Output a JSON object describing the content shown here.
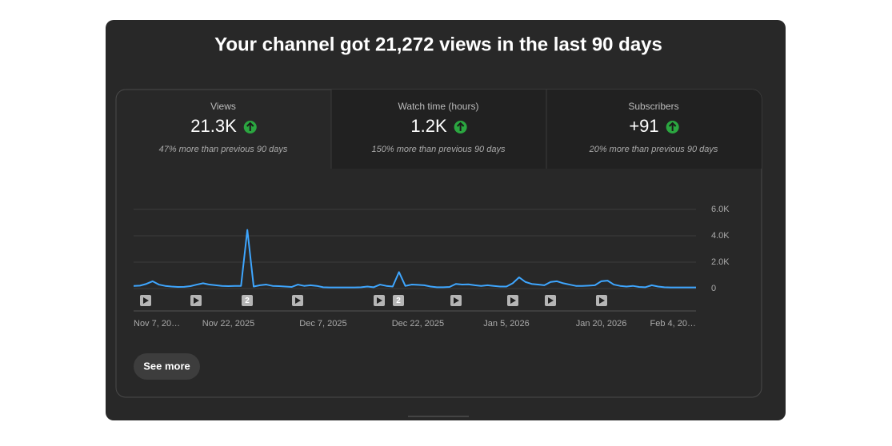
{
  "header": {
    "title": "Your channel got 21,272 views in the last 90 days"
  },
  "metrics": [
    {
      "label": "Views",
      "value": "21.3K",
      "note": "47% more than previous 90 days"
    },
    {
      "label": "Watch time (hours)",
      "value": "1.2K",
      "note": "150% more than previous 90 days"
    },
    {
      "label": "Subscribers",
      "value": "+91",
      "note": "20% more than previous 90 days"
    }
  ],
  "chart_data": {
    "type": "line",
    "color": "#3ea6ff",
    "grid": true,
    "categories": [
      "Nov 7, 20…",
      null,
      null,
      null,
      null,
      null,
      null,
      null,
      null,
      null,
      null,
      null,
      null,
      null,
      null,
      "Nov 22, 2025",
      null,
      null,
      null,
      null,
      null,
      null,
      null,
      null,
      null,
      null,
      null,
      null,
      null,
      null,
      "Dec 7, 2025",
      null,
      null,
      null,
      null,
      null,
      null,
      null,
      null,
      null,
      null,
      null,
      null,
      null,
      null,
      "Dec 22, 2025",
      null,
      null,
      null,
      null,
      null,
      null,
      null,
      null,
      null,
      null,
      null,
      null,
      null,
      "Jan 5, 2026",
      null,
      null,
      null,
      null,
      null,
      null,
      null,
      null,
      null,
      null,
      null,
      null,
      null,
      null,
      "Jan 20, 2026",
      null,
      null,
      null,
      null,
      null,
      null,
      null,
      null,
      null,
      null,
      null,
      null,
      null,
      null,
      "Feb 4, 20…"
    ],
    "values": [
      200,
      220,
      350,
      550,
      300,
      200,
      150,
      120,
      130,
      180,
      300,
      400,
      300,
      250,
      200,
      180,
      200,
      200,
      4450,
      150,
      250,
      300,
      200,
      180,
      150,
      120,
      300,
      200,
      250,
      200,
      100,
      80,
      80,
      80,
      80,
      80,
      100,
      150,
      100,
      300,
      200,
      150,
      1250,
      200,
      300,
      280,
      250,
      150,
      100,
      100,
      120,
      350,
      300,
      320,
      250,
      200,
      250,
      200,
      150,
      150,
      400,
      850,
      500,
      350,
      300,
      250,
      500,
      550,
      400,
      300,
      200,
      200,
      220,
      250,
      550,
      600,
      300,
      200,
      150,
      200,
      120,
      100,
      250,
      150,
      100,
      80,
      80,
      80,
      80,
      80
    ],
    "ylim": [
      0,
      6000
    ],
    "yticks": [
      {
        "value": 0,
        "label": "0"
      },
      {
        "value": 2000,
        "label": "2.0K"
      },
      {
        "value": 4000,
        "label": "4.0K"
      },
      {
        "value": 6000,
        "label": "6.0K"
      }
    ],
    "video_counts": [
      "2",
      "2"
    ]
  },
  "button": {
    "label": "See more"
  }
}
